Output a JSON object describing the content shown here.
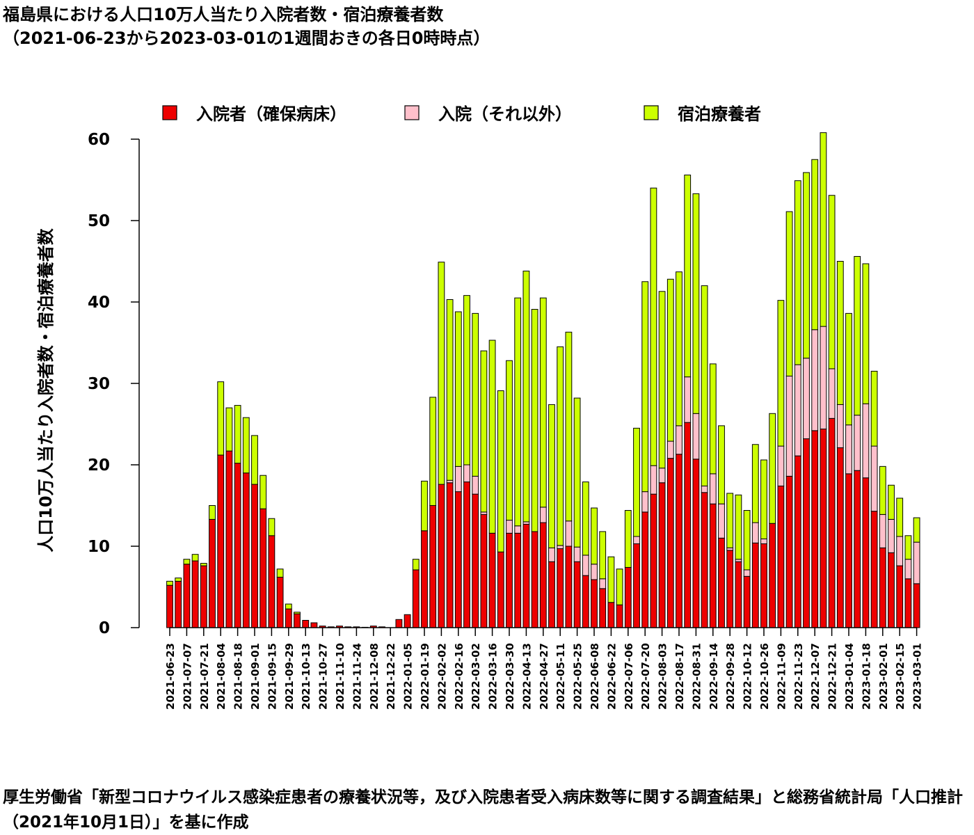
{
  "title": {
    "line1": "福島県における人口10万人当たり入院者数・宿泊療養者数",
    "line2": "（2021-06-23から2023-03-01の1週間おきの各日0時時点）"
  },
  "source": "厚生労働省「新型コロナウイルス感染症患者の療養状況等，及び入院患者受入病床数等に関する調査結果」と総務省統計局「人口推計（2021年10月1日）」を基に作成",
  "chart_data": {
    "type": "bar",
    "stacked": true,
    "ylabel": "人口10万人当たり入院者数・宿泊療養者数",
    "xlabel": "",
    "ylim": [
      0,
      60
    ],
    "yticks": [
      0,
      10,
      20,
      30,
      40,
      50,
      60
    ],
    "legend_position": "top",
    "categories": [
      "2021-06-23",
      "2021-06-30",
      "2021-07-07",
      "2021-07-14",
      "2021-07-21",
      "2021-07-28",
      "2021-08-04",
      "2021-08-11",
      "2021-08-18",
      "2021-08-25",
      "2021-09-01",
      "2021-09-08",
      "2021-09-15",
      "2021-09-22",
      "2021-09-29",
      "2021-10-06",
      "2021-10-13",
      "2021-10-20",
      "2021-10-27",
      "2021-11-03",
      "2021-11-10",
      "2021-11-17",
      "2021-11-24",
      "2021-12-01",
      "2021-12-08",
      "2021-12-15",
      "2021-12-22",
      "2021-12-29",
      "2022-01-05",
      "2022-01-12",
      "2022-01-19",
      "2022-01-26",
      "2022-02-02",
      "2022-02-09",
      "2022-02-16",
      "2022-02-23",
      "2022-03-02",
      "2022-03-09",
      "2022-03-16",
      "2022-03-23",
      "2022-03-30",
      "2022-04-06",
      "2022-04-13",
      "2022-04-20",
      "2022-04-27",
      "2022-05-04",
      "2022-05-11",
      "2022-05-18",
      "2022-05-25",
      "2022-06-01",
      "2022-06-08",
      "2022-06-15",
      "2022-06-22",
      "2022-06-29",
      "2022-07-06",
      "2022-07-13",
      "2022-07-20",
      "2022-07-27",
      "2022-08-03",
      "2022-08-10",
      "2022-08-17",
      "2022-08-24",
      "2022-08-31",
      "2022-09-07",
      "2022-09-14",
      "2022-09-21",
      "2022-09-28",
      "2022-10-05",
      "2022-10-12",
      "2022-10-19",
      "2022-10-26",
      "2022-11-02",
      "2022-11-09",
      "2022-11-16",
      "2022-11-23",
      "2022-11-30",
      "2022-12-07",
      "2022-12-14",
      "2022-12-21",
      "2022-12-28",
      "2023-01-04",
      "2023-01-11",
      "2023-01-18",
      "2023-01-25",
      "2023-02-01",
      "2023-02-08",
      "2023-02-15",
      "2023-02-22",
      "2023-03-01"
    ],
    "xtick_labels": [
      "2021-06-23",
      "2021-07-07",
      "2021-07-21",
      "2021-08-04",
      "2021-08-18",
      "2021-09-01",
      "2021-09-15",
      "2021-09-29",
      "2021-10-13",
      "2021-10-27",
      "2021-11-10",
      "2021-11-24",
      "2021-12-08",
      "2021-12-22",
      "2022-01-05",
      "2022-01-19",
      "2022-02-02",
      "2022-02-16",
      "2022-03-02",
      "2022-03-16",
      "2022-03-30",
      "2022-04-13",
      "2022-04-27",
      "2022-05-11",
      "2022-05-25",
      "2022-06-08",
      "2022-06-22",
      "2022-07-06",
      "2022-07-20",
      "2022-08-03",
      "2022-08-17",
      "2022-08-31",
      "2022-09-14",
      "2022-09-28",
      "2022-10-12",
      "2022-10-26",
      "2022-11-09",
      "2022-11-23",
      "2022-12-07",
      "2022-12-21",
      "2023-01-04",
      "2023-01-18",
      "2023-02-01",
      "2023-02-15",
      "2023-03-01"
    ],
    "series": [
      {
        "name": "入院者（確保病床）",
        "color": "#ee0000",
        "values": [
          5.2,
          5.7,
          7.8,
          8.2,
          7.6,
          13.3,
          21.2,
          21.7,
          20.2,
          19.0,
          17.6,
          14.6,
          11.3,
          6.2,
          2.3,
          1.7,
          0.9,
          0.6,
          0.2,
          0.1,
          0.2,
          0.1,
          0.1,
          0.05,
          0.2,
          0.1,
          0.0,
          1.0,
          1.6,
          7.1,
          11.9,
          15.0,
          17.6,
          17.8,
          16.7,
          17.9,
          16.4,
          13.9,
          11.6,
          9.3,
          11.6,
          11.6,
          12.7,
          11.8,
          12.9,
          8.1,
          9.7,
          10.0,
          8.1,
          6.4,
          5.9,
          4.8,
          3.1,
          2.8,
          7.4,
          10.3,
          14.2,
          16.4,
          17.8,
          20.8,
          21.3,
          25.2,
          20.7,
          16.6,
          15.2,
          11.0,
          9.5,
          8.1,
          6.3,
          10.4,
          10.3,
          12.8,
          17.4,
          18.6,
          21.1,
          23.2,
          24.2,
          24.4,
          25.7,
          22.1,
          18.9,
          19.3,
          18.4,
          14.3,
          9.8,
          9.2,
          7.6,
          6.0,
          5.4
        ]
      },
      {
        "name": "入院（それ以外）",
        "color": "#ffc0cb",
        "values": [
          0.0,
          0.0,
          0.0,
          0.0,
          0.0,
          0.0,
          0.0,
          0.0,
          0.0,
          0.0,
          0.0,
          0.0,
          0.0,
          0.0,
          0.0,
          0.0,
          0.0,
          0.0,
          0.0,
          0.0,
          0.0,
          0.0,
          0.0,
          0.0,
          0.0,
          0.0,
          0.0,
          0.0,
          0.0,
          0.0,
          0.0,
          0.0,
          0.0,
          0.3,
          3.1,
          2.1,
          2.2,
          0.3,
          0.0,
          0.0,
          1.6,
          0.9,
          0.3,
          0.0,
          1.9,
          1.7,
          0.4,
          3.1,
          1.8,
          2.5,
          1.9,
          1.2,
          0.0,
          0.0,
          0.0,
          0.9,
          2.5,
          3.5,
          1.8,
          2.1,
          3.5,
          5.6,
          5.6,
          0.8,
          3.7,
          4.2,
          0.3,
          0.3,
          0.8,
          2.5,
          0.6,
          0.0,
          4.9,
          12.3,
          11.2,
          9.9,
          12.4,
          12.6,
          6.1,
          5.3,
          6.0,
          6.8,
          9.1,
          8.0,
          4.1,
          4.1,
          3.6,
          2.4,
          5.1
        ]
      },
      {
        "name": "宿泊療養者",
        "color": "#ccff00",
        "values": [
          0.5,
          0.4,
          0.6,
          0.8,
          0.3,
          1.7,
          9.0,
          5.3,
          7.1,
          6.8,
          6.0,
          4.1,
          2.1,
          1.0,
          0.6,
          0.2,
          0.0,
          0.0,
          0.0,
          0.0,
          0.0,
          0.0,
          0.0,
          0.0,
          0.0,
          0.0,
          0.0,
          0.0,
          0.0,
          1.3,
          6.1,
          13.3,
          27.3,
          22.2,
          19.0,
          20.8,
          20.0,
          19.8,
          23.7,
          19.8,
          19.6,
          28.0,
          30.8,
          27.3,
          25.7,
          17.6,
          24.4,
          23.2,
          18.3,
          9.0,
          6.9,
          5.8,
          5.6,
          4.4,
          7.0,
          13.3,
          25.8,
          34.1,
          21.7,
          19.9,
          18.9,
          24.8,
          27.0,
          24.6,
          13.5,
          9.6,
          6.7,
          7.9,
          7.3,
          9.6,
          9.7,
          13.5,
          17.9,
          20.2,
          22.6,
          22.8,
          20.9,
          23.8,
          21.3,
          17.6,
          13.7,
          19.5,
          17.2,
          9.2,
          5.9,
          4.2,
          4.7,
          2.9,
          3.0
        ]
      }
    ]
  }
}
